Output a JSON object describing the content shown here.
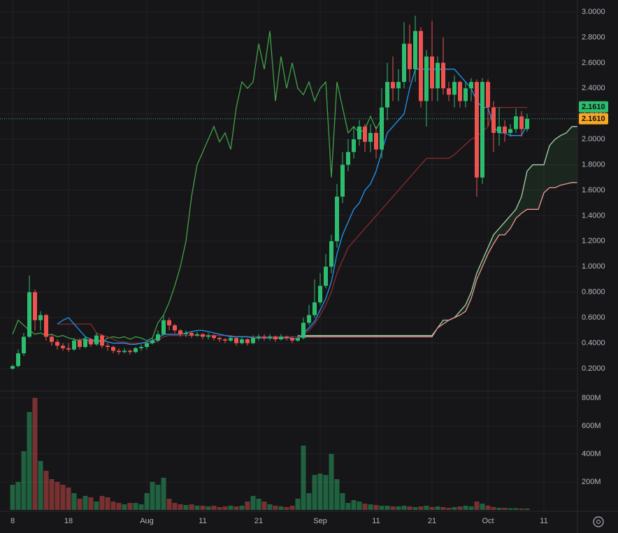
{
  "chart_data": {
    "type": "candlestick",
    "x": [
      "Jul 8",
      "Jul 9",
      "Jul 10",
      "Jul 11",
      "Jul 12",
      "Jul 13",
      "Jul 14",
      "Jul 15",
      "Jul 16",
      "Jul 17",
      "Jul 18",
      "Jul 19",
      "Jul 20",
      "Jul 21",
      "Jul 22",
      "Jul 23",
      "Jul 24",
      "Jul 25",
      "Jul 26",
      "Jul 27",
      "Jul 28",
      "Jul 29",
      "Jul 30",
      "Jul 31",
      "Aug 1",
      "Aug 2",
      "Aug 3",
      "Aug 4",
      "Aug 5",
      "Aug 6",
      "Aug 7",
      "Aug 8",
      "Aug 9",
      "Aug 10",
      "Aug 11",
      "Aug 12",
      "Aug 13",
      "Aug 14",
      "Aug 15",
      "Aug 16",
      "Aug 17",
      "Aug 18",
      "Aug 19",
      "Aug 20",
      "Aug 21",
      "Aug 22",
      "Aug 23",
      "Aug 24",
      "Aug 25",
      "Aug 26",
      "Aug 27",
      "Aug 28",
      "Aug 29",
      "Aug 30",
      "Aug 31",
      "Sep 1",
      "Sep 2",
      "Sep 3",
      "Sep 4",
      "Sep 5",
      "Sep 6",
      "Sep 7",
      "Sep 8",
      "Sep 9",
      "Sep 10",
      "Sep 11",
      "Sep 12",
      "Sep 13",
      "Sep 14",
      "Sep 15",
      "Sep 16",
      "Sep 17",
      "Sep 18",
      "Sep 19",
      "Sep 20",
      "Sep 21",
      "Sep 22",
      "Sep 23",
      "Sep 24",
      "Sep 25",
      "Sep 26",
      "Sep 27",
      "Sep 28",
      "Sep 29",
      "Sep 30",
      "Oct 1",
      "Oct 2",
      "Oct 3",
      "Oct 4",
      "Oct 5",
      "Oct 6",
      "Oct 7",
      "Oct 8",
      "Oct 9",
      "Oct 10",
      "Oct 11",
      "Oct 12",
      "Oct 13",
      "Oct 14",
      "Oct 15",
      "Oct 16",
      "Oct 17"
    ],
    "xticks": [
      {
        "value": "Jul 8",
        "label": "8"
      },
      {
        "value": "Jul 18",
        "label": "18"
      },
      {
        "value": "Aug 1",
        "label": "Aug"
      },
      {
        "value": "Aug 11",
        "label": "11"
      },
      {
        "value": "Aug 21",
        "label": "21"
      },
      {
        "value": "Sep 1",
        "label": "Sep"
      },
      {
        "value": "Sep 11",
        "label": "11"
      },
      {
        "value": "Sep 21",
        "label": "21"
      },
      {
        "value": "Oct 1",
        "label": "Oct"
      },
      {
        "value": "Oct 11",
        "label": "11"
      }
    ],
    "open": [
      0.2,
      0.22,
      0.32,
      0.45,
      0.8,
      0.58,
      0.62,
      0.45,
      0.41,
      0.38,
      0.36,
      0.35,
      0.42,
      0.37,
      0.43,
      0.39,
      0.46,
      0.38,
      0.37,
      0.34,
      0.33,
      0.34,
      0.33,
      0.36,
      0.37,
      0.4,
      0.42,
      0.47,
      0.58,
      0.54,
      0.5,
      0.47,
      0.48,
      0.46,
      0.47,
      0.45,
      0.46,
      0.44,
      0.43,
      0.42,
      0.44,
      0.4,
      0.43,
      0.4,
      0.44,
      0.45,
      0.44,
      0.45,
      0.43,
      0.45,
      0.44,
      0.42,
      0.44,
      0.56,
      0.62,
      0.72,
      0.85,
      1.0,
      1.2,
      1.55,
      1.8,
      1.9,
      2.0,
      2.1,
      1.98,
      2.05,
      1.92,
      2.25,
      2.45,
      2.4,
      2.45,
      2.75,
      2.55,
      2.85,
      2.3,
      2.65,
      2.4,
      2.6,
      2.4,
      2.35,
      2.45,
      2.3,
      2.4,
      2.45,
      1.7,
      2.45,
      2.25,
      2.05,
      2.1,
      2.05,
      2.08,
      2.18,
      2.08,
      null,
      null,
      null,
      null,
      null,
      null,
      null,
      null,
      null
    ],
    "high": [
      0.23,
      0.35,
      0.48,
      0.93,
      0.82,
      0.65,
      0.63,
      0.47,
      0.43,
      0.4,
      0.4,
      0.44,
      0.44,
      0.45,
      0.44,
      0.48,
      0.47,
      0.4,
      0.38,
      0.36,
      0.36,
      0.35,
      0.37,
      0.39,
      0.41,
      0.44,
      0.5,
      0.62,
      0.6,
      0.55,
      0.51,
      0.5,
      0.49,
      0.49,
      0.48,
      0.48,
      0.47,
      0.45,
      0.44,
      0.46,
      0.45,
      0.45,
      0.44,
      0.46,
      0.47,
      0.47,
      0.47,
      0.46,
      0.47,
      0.46,
      0.45,
      0.46,
      0.6,
      0.7,
      0.9,
      0.95,
      1.1,
      1.25,
      1.65,
      1.9,
      2.0,
      2.1,
      2.15,
      2.12,
      2.12,
      2.1,
      2.4,
      2.6,
      2.65,
      2.55,
      2.92,
      2.9,
      2.97,
      2.88,
      2.7,
      2.93,
      2.65,
      2.8,
      2.45,
      2.5,
      2.46,
      2.45,
      2.48,
      2.47,
      2.48,
      2.47,
      2.3,
      2.25,
      2.15,
      2.12,
      2.24,
      2.22,
      2.2,
      null,
      null,
      null,
      null,
      null,
      null,
      null,
      null,
      null
    ],
    "low": [
      0.19,
      0.21,
      0.3,
      0.44,
      0.5,
      0.5,
      0.42,
      0.38,
      0.35,
      0.34,
      0.33,
      0.34,
      0.35,
      0.36,
      0.37,
      0.38,
      0.36,
      0.34,
      0.32,
      0.31,
      0.32,
      0.31,
      0.32,
      0.34,
      0.35,
      0.39,
      0.41,
      0.46,
      0.5,
      0.48,
      0.45,
      0.45,
      0.44,
      0.45,
      0.43,
      0.43,
      0.42,
      0.41,
      0.4,
      0.41,
      0.38,
      0.39,
      0.38,
      0.39,
      0.42,
      0.42,
      0.42,
      0.41,
      0.42,
      0.42,
      0.4,
      0.41,
      0.43,
      0.54,
      0.6,
      0.7,
      0.83,
      0.95,
      1.15,
      1.5,
      1.75,
      1.85,
      1.95,
      1.9,
      1.9,
      1.85,
      1.85,
      2.15,
      2.3,
      2.3,
      2.4,
      2.45,
      2.45,
      2.25,
      2.1,
      2.3,
      2.3,
      2.35,
      2.3,
      2.25,
      2.25,
      2.25,
      2.3,
      1.55,
      1.65,
      2.1,
      1.9,
      1.95,
      1.98,
      2.02,
      2.05,
      2.02,
      2.06,
      null,
      null,
      null,
      null,
      null,
      null,
      null,
      null,
      null
    ],
    "close": [
      0.22,
      0.32,
      0.45,
      0.8,
      0.58,
      0.62,
      0.45,
      0.41,
      0.38,
      0.36,
      0.35,
      0.42,
      0.37,
      0.43,
      0.39,
      0.46,
      0.38,
      0.37,
      0.34,
      0.33,
      0.34,
      0.33,
      0.36,
      0.37,
      0.4,
      0.42,
      0.47,
      0.58,
      0.54,
      0.5,
      0.47,
      0.48,
      0.46,
      0.47,
      0.45,
      0.46,
      0.44,
      0.43,
      0.42,
      0.44,
      0.4,
      0.43,
      0.4,
      0.44,
      0.45,
      0.44,
      0.45,
      0.43,
      0.45,
      0.44,
      0.42,
      0.44,
      0.56,
      0.62,
      0.72,
      0.85,
      1.0,
      1.2,
      1.55,
      1.8,
      1.9,
      2.0,
      2.1,
      1.98,
      2.05,
      1.92,
      2.25,
      2.45,
      2.4,
      2.45,
      2.75,
      2.55,
      2.85,
      2.3,
      2.65,
      2.4,
      2.6,
      2.4,
      2.35,
      2.45,
      2.3,
      2.4,
      2.45,
      1.7,
      2.45,
      2.25,
      2.05,
      2.1,
      2.05,
      2.08,
      2.18,
      2.08,
      2.161,
      null,
      null,
      null,
      null,
      null,
      null,
      null,
      null,
      null
    ],
    "up_color": "#2dbd6e",
    "down_color": "#ef5350",
    "ylim": [
      0.0297,
      3.0933
    ],
    "yticks": [
      {
        "value": 0.2,
        "label": "0.2000"
      },
      {
        "value": 0.4,
        "label": "0.4000"
      },
      {
        "value": 0.6,
        "label": "0.6000"
      },
      {
        "value": 0.8,
        "label": "0.8000"
      },
      {
        "value": 1.0,
        "label": "1.0000"
      },
      {
        "value": 1.2,
        "label": "1.2000"
      },
      {
        "value": 1.4,
        "label": "1.4000"
      },
      {
        "value": 1.6,
        "label": "1.6000"
      },
      {
        "value": 1.8,
        "label": "1.8000"
      },
      {
        "value": 2.0,
        "label": "2.0000"
      },
      {
        "value": 2.2,
        "label": "2.2000"
      },
      {
        "value": 2.4,
        "label": "2.4000"
      },
      {
        "value": 2.6,
        "label": "2.6000"
      },
      {
        "value": 2.8,
        "label": "2.8000"
      },
      {
        "value": 3.0,
        "label": "3.0000"
      }
    ],
    "grid": true,
    "lines": [
      {
        "color": "#43a047",
        "values": [
          0.47,
          0.58,
          0.54,
          0.5,
          0.47,
          0.48,
          0.46,
          0.47,
          0.45,
          0.46,
          0.44,
          0.43,
          0.42,
          0.44,
          0.4,
          0.43,
          0.4,
          0.44,
          0.45,
          0.44,
          0.45,
          0.43,
          0.45,
          0.44,
          0.42,
          0.44,
          0.56,
          0.62,
          0.72,
          0.85,
          1.0,
          1.2,
          1.55,
          1.8,
          1.9,
          2.0,
          2.1,
          1.98,
          2.05,
          1.92,
          2.25,
          2.45,
          2.4,
          2.45,
          2.75,
          2.55,
          2.85,
          2.3,
          2.65,
          2.4,
          2.6,
          2.4,
          2.35,
          2.45,
          2.3,
          2.4,
          2.45,
          1.7,
          2.45,
          2.25,
          2.05,
          2.1,
          2.05,
          2.08,
          2.18,
          2.08,
          2.161,
          null,
          null,
          null,
          null,
          null,
          null,
          null,
          null,
          null,
          null,
          null,
          null,
          null,
          null,
          null,
          null,
          null,
          null,
          null,
          null,
          null,
          null,
          null,
          null,
          null,
          null,
          null,
          null,
          null,
          null,
          null,
          null,
          null,
          null,
          null
        ]
      },
      {
        "color": "#2196f3",
        "values": [
          null,
          null,
          null,
          null,
          null,
          null,
          null,
          null,
          0.55,
          0.58,
          0.6,
          0.55,
          0.5,
          0.45,
          0.43,
          0.42,
          0.42,
          0.41,
          0.4,
          0.4,
          0.4,
          0.39,
          0.39,
          0.4,
          0.41,
          0.42,
          0.44,
          0.47,
          0.47,
          0.47,
          0.47,
          0.48,
          0.49,
          0.5,
          0.5,
          0.49,
          0.48,
          0.47,
          0.46,
          0.45,
          0.45,
          0.45,
          0.45,
          0.44,
          0.44,
          0.44,
          0.44,
          0.44,
          0.44,
          0.44,
          0.44,
          0.43,
          0.48,
          0.52,
          0.57,
          0.66,
          0.75,
          0.88,
          1.1,
          1.25,
          1.35,
          1.45,
          1.5,
          1.6,
          1.65,
          1.75,
          1.9,
          2.05,
          2.1,
          2.15,
          2.2,
          2.4,
          2.55,
          2.55,
          2.55,
          2.55,
          2.55,
          2.55,
          2.55,
          2.55,
          2.5,
          2.45,
          2.4,
          2.3,
          2.25,
          2.25,
          2.1,
          2.05,
          2.05,
          2.03,
          2.03,
          2.03,
          2.12,
          null,
          null,
          null,
          null,
          null,
          null,
          null,
          null,
          null
        ]
      },
      {
        "color": "#8a2a2a",
        "values": [
          null,
          null,
          null,
          null,
          null,
          null,
          null,
          null,
          0.55,
          0.55,
          0.55,
          0.55,
          0.55,
          0.55,
          0.55,
          0.48,
          0.46,
          0.45,
          0.43,
          0.41,
          0.41,
          0.4,
          0.4,
          0.4,
          0.4,
          0.4,
          0.42,
          0.45,
          0.46,
          0.46,
          0.46,
          0.46,
          0.46,
          0.46,
          0.46,
          0.46,
          0.46,
          0.46,
          0.46,
          0.46,
          0.45,
          0.45,
          0.45,
          0.45,
          0.45,
          0.45,
          0.45,
          0.45,
          0.45,
          0.45,
          0.45,
          0.45,
          0.47,
          0.5,
          0.55,
          0.62,
          0.7,
          0.8,
          0.95,
          1.05,
          1.15,
          1.2,
          1.25,
          1.3,
          1.35,
          1.4,
          1.45,
          1.5,
          1.55,
          1.6,
          1.65,
          1.7,
          1.75,
          1.8,
          1.85,
          1.85,
          1.85,
          1.85,
          1.85,
          1.88,
          1.92,
          1.96,
          2.0,
          2.02,
          2.06,
          2.1,
          2.25,
          2.25,
          2.25,
          2.25,
          2.25,
          2.25,
          2.25,
          null,
          null,
          null,
          null,
          null,
          null,
          null,
          null,
          null
        ]
      },
      {
        "color": "#a5d6a7",
        "values": [
          null,
          null,
          null,
          null,
          null,
          null,
          null,
          null,
          null,
          null,
          null,
          null,
          null,
          null,
          null,
          null,
          null,
          null,
          null,
          null,
          null,
          null,
          null,
          null,
          null,
          null,
          null,
          null,
          null,
          null,
          null,
          null,
          null,
          null,
          null,
          null,
          null,
          null,
          null,
          null,
          null,
          null,
          null,
          null,
          null,
          null,
          null,
          null,
          null,
          null,
          null,
          0.46,
          0.46,
          0.46,
          0.46,
          0.46,
          0.46,
          0.46,
          0.46,
          0.46,
          0.46,
          0.46,
          0.46,
          0.46,
          0.46,
          0.46,
          0.46,
          0.46,
          0.46,
          0.46,
          0.46,
          0.46,
          0.46,
          0.46,
          0.46,
          0.46,
          0.52,
          0.58,
          0.58,
          0.6,
          0.65,
          0.7,
          0.8,
          0.95,
          1.05,
          1.15,
          1.25,
          1.3,
          1.35,
          1.4,
          1.45,
          1.55,
          1.75,
          1.8,
          1.8,
          1.8,
          1.95,
          2.0,
          2.03,
          2.05,
          2.1,
          2.1
        ]
      },
      {
        "color": "#ef9a9a",
        "values": [
          null,
          null,
          null,
          null,
          null,
          null,
          null,
          null,
          null,
          null,
          null,
          null,
          null,
          null,
          null,
          null,
          null,
          null,
          null,
          null,
          null,
          null,
          null,
          null,
          null,
          null,
          null,
          null,
          null,
          null,
          null,
          null,
          null,
          null,
          null,
          null,
          null,
          null,
          null,
          null,
          null,
          null,
          null,
          null,
          null,
          null,
          null,
          null,
          null,
          null,
          null,
          0.45,
          0.45,
          0.45,
          0.45,
          0.45,
          0.45,
          0.45,
          0.45,
          0.45,
          0.45,
          0.45,
          0.45,
          0.45,
          0.45,
          0.45,
          0.45,
          0.45,
          0.45,
          0.45,
          0.45,
          0.45,
          0.45,
          0.45,
          0.45,
          0.45,
          0.52,
          0.55,
          0.58,
          0.6,
          0.62,
          0.65,
          0.75,
          0.9,
          1.0,
          1.1,
          1.18,
          1.25,
          1.25,
          1.3,
          1.38,
          1.42,
          1.45,
          1.45,
          1.45,
          1.58,
          1.62,
          1.62,
          1.64,
          1.65,
          1.66,
          1.66
        ]
      }
    ],
    "cloud_up_color": "#43a047",
    "cloud_down_color": "#ef5350",
    "price_tags": [
      {
        "value": 2.161,
        "label": "2.1610",
        "color": "#2dbd6e"
      },
      {
        "value": 2.161,
        "label": "2.1610",
        "color": "#f9a825"
      }
    ],
    "volume": {
      "values": [
        180000000,
        200000000,
        420000000,
        700000000,
        800000000,
        350000000,
        280000000,
        220000000,
        200000000,
        180000000,
        160000000,
        120000000,
        80000000,
        100000000,
        90000000,
        60000000,
        100000000,
        90000000,
        60000000,
        50000000,
        40000000,
        50000000,
        50000000,
        40000000,
        120000000,
        200000000,
        180000000,
        230000000,
        80000000,
        50000000,
        40000000,
        35000000,
        40000000,
        30000000,
        30000000,
        25000000,
        30000000,
        20000000,
        25000000,
        30000000,
        25000000,
        30000000,
        60000000,
        100000000,
        80000000,
        60000000,
        40000000,
        30000000,
        25000000,
        20000000,
        30000000,
        80000000,
        460000000,
        120000000,
        250000000,
        260000000,
        250000000,
        400000000,
        220000000,
        120000000,
        50000000,
        70000000,
        60000000,
        45000000,
        40000000,
        35000000,
        30000000,
        30000000,
        25000000,
        25000000,
        30000000,
        25000000,
        20000000,
        25000000,
        30000000,
        20000000,
        25000000,
        20000000,
        15000000,
        20000000,
        25000000,
        30000000,
        25000000,
        60000000,
        45000000,
        30000000,
        20000000,
        15000000,
        15000000,
        12000000,
        12000000,
        10000000,
        10000000,
        null,
        null,
        null,
        null,
        null,
        null,
        null,
        null,
        null
      ],
      "ylim": [
        0,
        845000000
      ],
      "yticks": [
        {
          "value": 200000000,
          "label": "200M"
        },
        {
          "value": 400000000,
          "label": "400M"
        },
        {
          "value": 600000000,
          "label": "600M"
        },
        {
          "value": 800000000,
          "label": "800M"
        }
      ]
    }
  }
}
